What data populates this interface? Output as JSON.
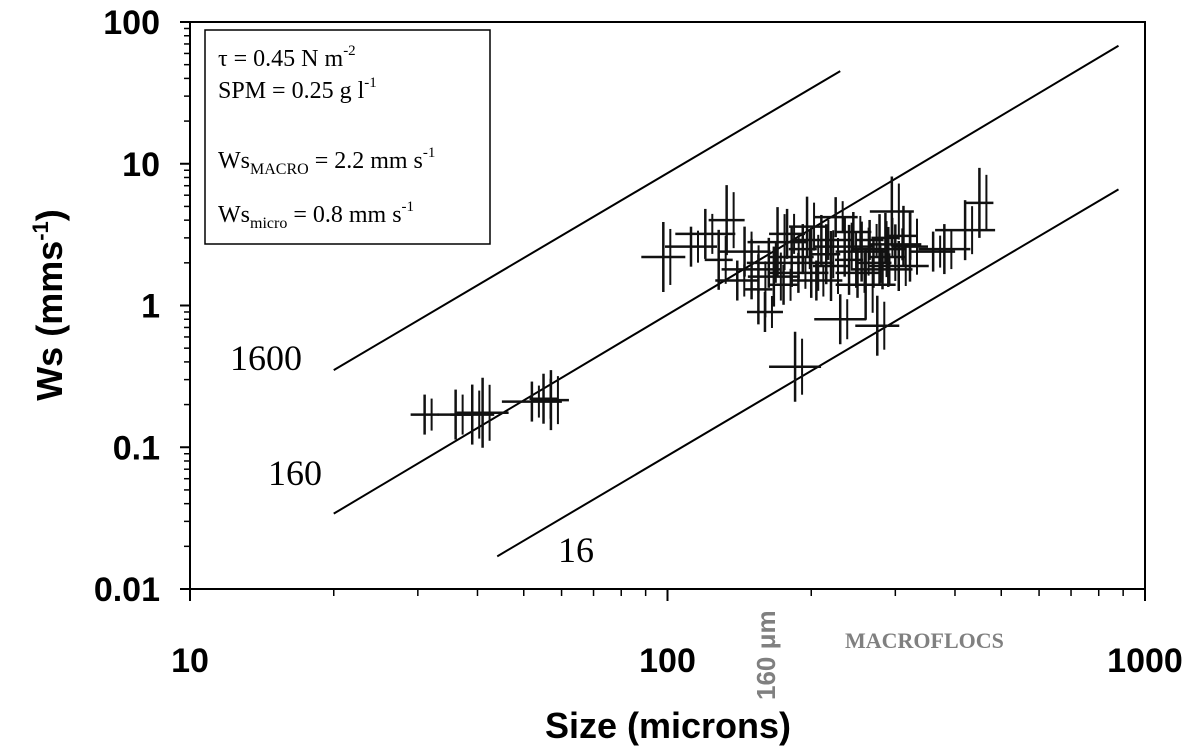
{
  "chart_data": {
    "type": "scatter",
    "xlabel": "Size (microns)",
    "ylabel": "Ws (mms",
    "ylabel_sup": "-1",
    "ylabel_close": ")",
    "xscale": "log",
    "yscale": "log",
    "xlim": [
      10,
      1000
    ],
    "ylim": [
      0.01,
      100
    ],
    "x_ticks": [
      {
        "v": 10,
        "label": "10"
      },
      {
        "v": 100,
        "label": "100"
      },
      {
        "v": 1000,
        "label": "1000"
      }
    ],
    "y_ticks": [
      {
        "v": 100,
        "label": "100"
      },
      {
        "v": 10,
        "label": "10"
      },
      {
        "v": 1,
        "label": "1"
      },
      {
        "v": 0.1,
        "label": "0.1"
      },
      {
        "v": 0.01,
        "label": "0.01"
      }
    ],
    "grid": false,
    "legend_box": {
      "tau_label": "τ = 0.45 N m",
      "tau_sup": "-2",
      "spm_label": "SPM = 0.25 g l",
      "spm_sup": "-1",
      "macro_prefix": "Ws",
      "macro_sub": "MACRO",
      "macro_value": " = 2.2 mm s",
      "macro_sup": "-1",
      "micro_prefix": "Ws",
      "micro_sub": "micro",
      "micro_value": " = 0.8 mm s",
      "micro_sup": "-1"
    },
    "reference_lines": [
      {
        "label": "1600",
        "x_range": [
          20,
          230
        ],
        "y_range": [
          0.35,
          45
        ]
      },
      {
        "label": "160",
        "x_range": [
          20,
          880
        ],
        "y_range": [
          0.034,
          68
        ]
      },
      {
        "label": "16",
        "x_range": [
          44,
          880
        ],
        "y_range": [
          0.017,
          6.6
        ]
      }
    ],
    "annotations": [
      {
        "text": "160 μm",
        "x": 160
      },
      {
        "text": "MACROFLOCS"
      }
    ],
    "points": [
      {
        "x": 31,
        "y": 0.17
      },
      {
        "x": 36,
        "y": 0.17
      },
      {
        "x": 39,
        "y": 0.17
      },
      {
        "x": 41,
        "y": 0.175
      },
      {
        "x": 52,
        "y": 0.21
      },
      {
        "x": 55,
        "y": 0.22
      },
      {
        "x": 57,
        "y": 0.215
      },
      {
        "x": 98,
        "y": 2.2
      },
      {
        "x": 112,
        "y": 2.6
      },
      {
        "x": 120,
        "y": 3.2
      },
      {
        "x": 128,
        "y": 2.1
      },
      {
        "x": 133,
        "y": 4.0
      },
      {
        "x": 140,
        "y": 1.5
      },
      {
        "x": 145,
        "y": 2.4
      },
      {
        "x": 150,
        "y": 1.8
      },
      {
        "x": 155,
        "y": 1.3
      },
      {
        "x": 160,
        "y": 0.9
      },
      {
        "x": 163,
        "y": 2.0
      },
      {
        "x": 167,
        "y": 1.6
      },
      {
        "x": 170,
        "y": 2.8
      },
      {
        "x": 175,
        "y": 1.4
      },
      {
        "x": 178,
        "y": 3.2
      },
      {
        "x": 182,
        "y": 2.2
      },
      {
        "x": 185,
        "y": 0.37
      },
      {
        "x": 188,
        "y": 1.7
      },
      {
        "x": 192,
        "y": 2.5
      },
      {
        "x": 196,
        "y": 3.6
      },
      {
        "x": 200,
        "y": 2.0
      },
      {
        "x": 205,
        "y": 1.5
      },
      {
        "x": 210,
        "y": 2.9
      },
      {
        "x": 215,
        "y": 2.3
      },
      {
        "x": 220,
        "y": 1.9
      },
      {
        "x": 225,
        "y": 4.2
      },
      {
        "x": 230,
        "y": 0.8
      },
      {
        "x": 235,
        "y": 2.6
      },
      {
        "x": 240,
        "y": 2.1
      },
      {
        "x": 245,
        "y": 3.3
      },
      {
        "x": 250,
        "y": 1.7
      },
      {
        "x": 255,
        "y": 2.4
      },
      {
        "x": 260,
        "y": 1.4
      },
      {
        "x": 265,
        "y": 2.9
      },
      {
        "x": 270,
        "y": 2.0
      },
      {
        "x": 275,
        "y": 0.72
      },
      {
        "x": 278,
        "y": 2.5
      },
      {
        "x": 282,
        "y": 1.8
      },
      {
        "x": 286,
        "y": 3.0
      },
      {
        "x": 290,
        "y": 2.2
      },
      {
        "x": 295,
        "y": 4.6
      },
      {
        "x": 300,
        "y": 2.7
      },
      {
        "x": 305,
        "y": 1.9
      },
      {
        "x": 312,
        "y": 3.1
      },
      {
        "x": 322,
        "y": 2.6
      },
      {
        "x": 360,
        "y": 2.4
      },
      {
        "x": 380,
        "y": 2.5
      },
      {
        "x": 420,
        "y": 3.4
      },
      {
        "x": 450,
        "y": 5.3
      }
    ]
  }
}
